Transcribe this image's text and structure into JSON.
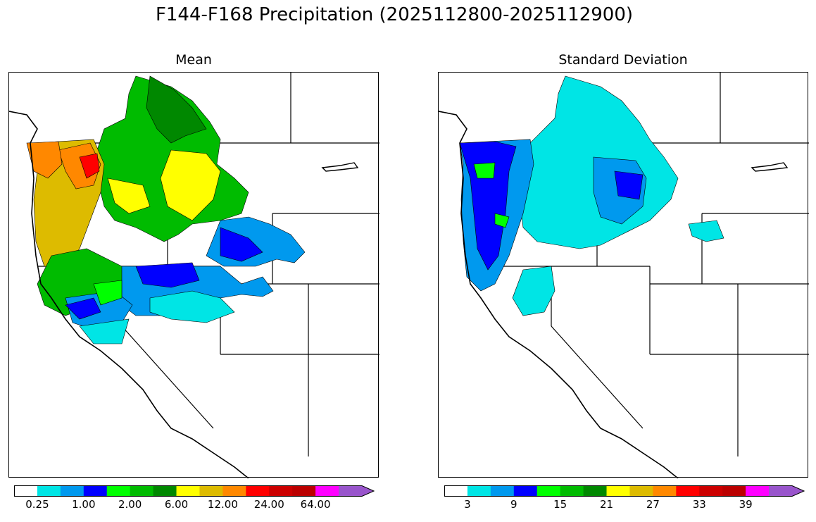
{
  "title": "F144-F168 Precipitation (2025112800-2025112900)",
  "panels": [
    {
      "id": "mean",
      "title": "Mean",
      "colorbar": {
        "colors": [
          "#ffffff",
          "#00e5e5",
          "#0099ee",
          "#0000ff",
          "#00ff00",
          "#00bb00",
          "#008800",
          "#ffff00",
          "#ddbb00",
          "#ff8800",
          "#ff0000",
          "#cc0000",
          "#bb0000",
          "#ff00ff",
          "#9955cc"
        ],
        "tick_labels": [
          "0.25",
          "1.00",
          "2.00",
          "6.00",
          "12.00",
          "24.00",
          "64.00"
        ],
        "extend": "max"
      }
    },
    {
      "id": "stdev",
      "title": "Standard Deviation",
      "colorbar": {
        "colors": [
          "#ffffff",
          "#00e5e5",
          "#0099ee",
          "#0000ff",
          "#00ff00",
          "#00bb00",
          "#008800",
          "#ffff00",
          "#ddbb00",
          "#ff8800",
          "#ff0000",
          "#cc0000",
          "#bb0000",
          "#ff00ff",
          "#9955cc"
        ],
        "tick_labels": [
          "3",
          "9",
          "15",
          "21",
          "27",
          "33",
          "39"
        ],
        "extend": "max"
      }
    }
  ]
}
